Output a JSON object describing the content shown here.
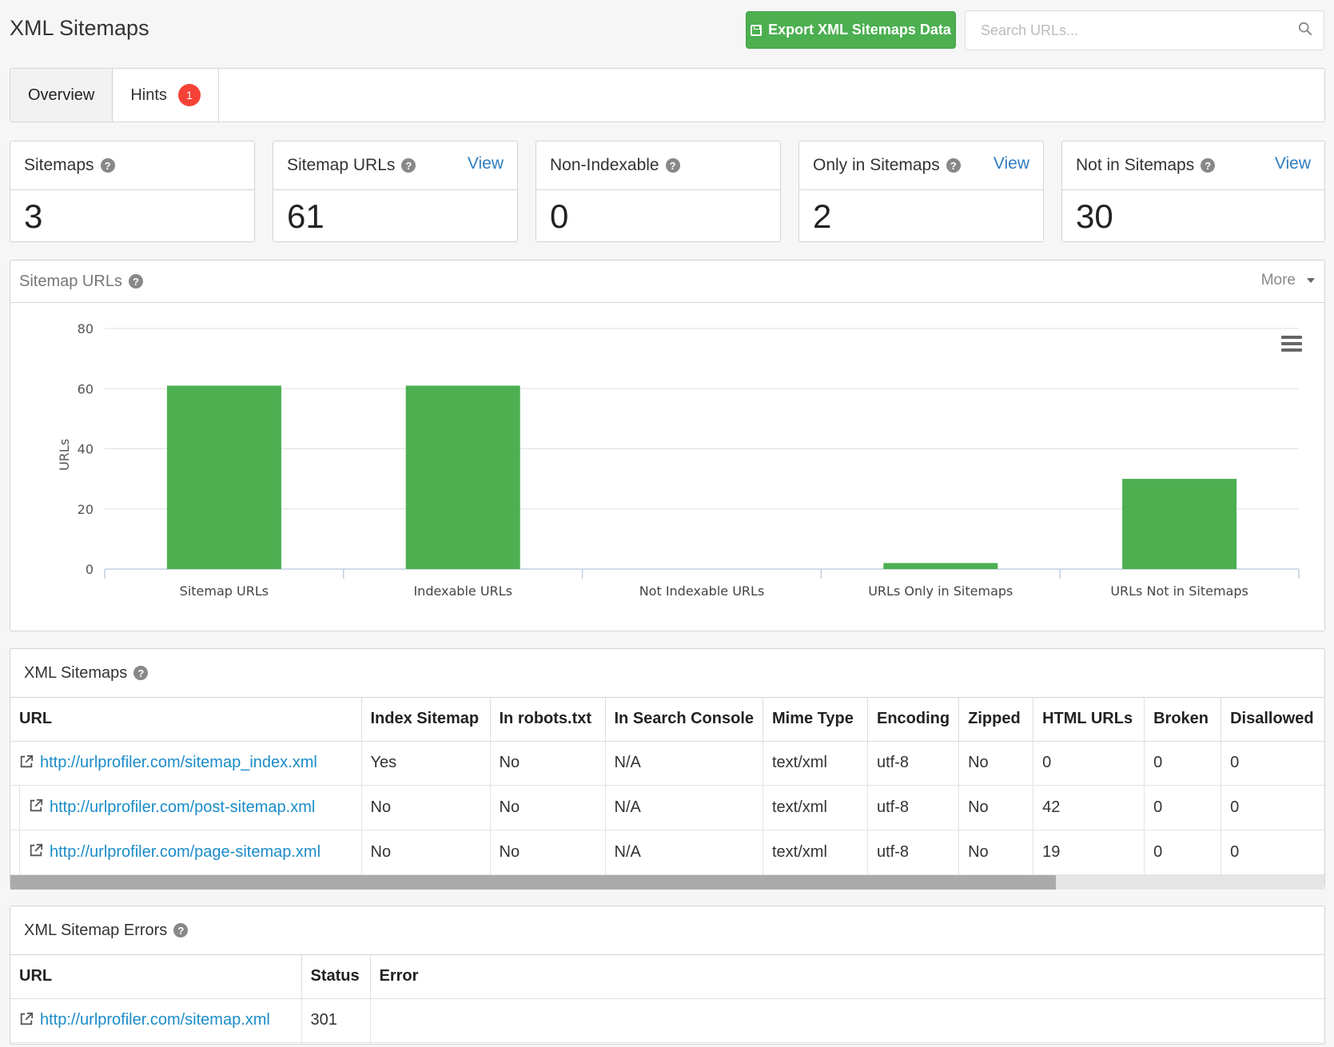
{
  "header": {
    "title": "XML Sitemaps",
    "export_label": "Export XML Sitemaps Data",
    "search_placeholder": "Search URLs..."
  },
  "tabs": [
    {
      "label": "Overview",
      "active": true
    },
    {
      "label": "Hints",
      "badge": "1"
    }
  ],
  "cards": [
    {
      "label": "Sitemaps",
      "value": "3"
    },
    {
      "label": "Sitemap URLs",
      "value": "61",
      "link": "View"
    },
    {
      "label": "Non-Indexable",
      "value": "0"
    },
    {
      "label": "Only in Sitemaps",
      "value": "2",
      "link": "View"
    },
    {
      "label": "Not in Sitemaps",
      "value": "30",
      "link": "View"
    }
  ],
  "chart_panel": {
    "title": "Sitemap URLs",
    "more_label": "More"
  },
  "chart_data": {
    "type": "bar",
    "categories": [
      "Sitemap URLs",
      "Indexable URLs",
      "Not Indexable URLs",
      "URLs Only in Sitemaps",
      "URLs Not in Sitemaps"
    ],
    "values": [
      61,
      61,
      0,
      2,
      30
    ],
    "ylabel": "URLs",
    "xlabel": "",
    "ylim": [
      0,
      80
    ],
    "yticks": [
      0,
      20,
      40,
      60,
      80
    ],
    "color": "#4caf50",
    "grid": true
  },
  "sitemaps_table": {
    "title": "XML Sitemaps",
    "columns": [
      "URL",
      "Index Sitemap",
      "In robots.txt",
      "In Search Console",
      "Mime Type",
      "Encoding",
      "Zipped",
      "HTML URLs",
      "Broken",
      "Disallowed"
    ],
    "rows": [
      {
        "url": "http://urlprofiler.com/sitemap_index.xml",
        "index": "Yes",
        "robots": "No",
        "console": "N/A",
        "mime": "text/xml",
        "encoding": "utf-8",
        "zipped": "No",
        "html": "0",
        "broken": "0",
        "disallowed": "0"
      },
      {
        "url": "http://urlprofiler.com/post-sitemap.xml",
        "index": "No",
        "robots": "No",
        "console": "N/A",
        "mime": "text/xml",
        "encoding": "utf-8",
        "zipped": "No",
        "html": "42",
        "broken": "0",
        "disallowed": "0"
      },
      {
        "url": "http://urlprofiler.com/page-sitemap.xml",
        "index": "No",
        "robots": "No",
        "console": "N/A",
        "mime": "text/xml",
        "encoding": "utf-8",
        "zipped": "No",
        "html": "19",
        "broken": "0",
        "disallowed": "0"
      }
    ]
  },
  "errors_table": {
    "title": "XML Sitemap Errors",
    "columns": [
      "URL",
      "Status",
      "Error"
    ],
    "rows": [
      {
        "url": "http://urlprofiler.com/sitemap.xml",
        "status": "301",
        "error": ""
      }
    ]
  },
  "icons": {
    "export": "floppy-disk-icon",
    "search": "search-icon",
    "help": "question-circle-icon",
    "external": "external-link-icon",
    "chart_menu": "hamburger-menu-icon"
  }
}
